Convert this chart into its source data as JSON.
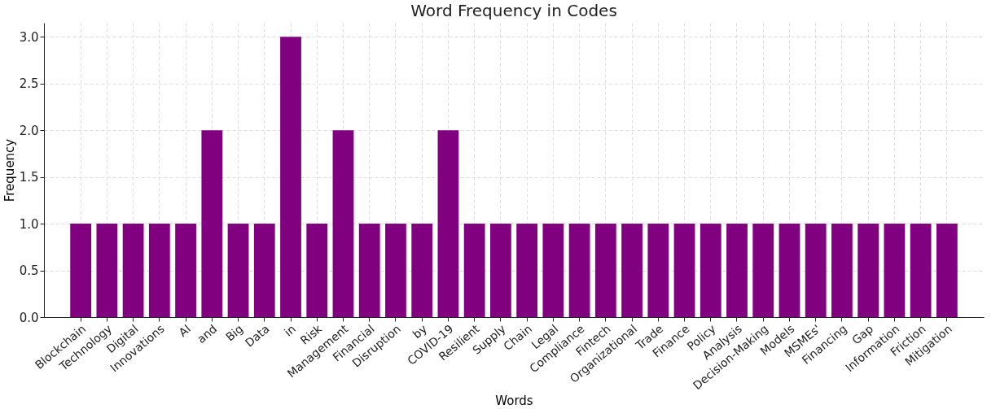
{
  "chart_data": {
    "type": "bar",
    "title": "Word Frequency in Codes",
    "xlabel": "Words",
    "ylabel": "Frequency",
    "categories": [
      "Blockchain",
      "Technology",
      "Digital",
      "Innovations",
      "AI",
      "and",
      "Big",
      "Data",
      "in",
      "Risk",
      "Management",
      "Financial",
      "Disruption",
      "by",
      "COVID-19",
      "Resilient",
      "Supply",
      "Chain",
      "Legal",
      "Compliance",
      "Fintech",
      "Organizational",
      "Trade",
      "Finance",
      "Policy",
      "Analysis",
      "Decision-Making",
      "Models",
      "MSMEs'",
      "Financing",
      "Gap",
      "Information",
      "Friction",
      "Mitigation"
    ],
    "values": [
      1,
      1,
      1,
      1,
      1,
      2,
      1,
      1,
      3,
      1,
      2,
      1,
      1,
      1,
      2,
      1,
      1,
      1,
      1,
      1,
      1,
      1,
      1,
      1,
      1,
      1,
      1,
      1,
      1,
      1,
      1,
      1,
      1,
      1
    ],
    "color": "#800080",
    "ylim": [
      0,
      3.15
    ],
    "yticks": [
      {
        "value": 0,
        "label": "0.0"
      },
      {
        "value": 0.5,
        "label": "0.5"
      },
      {
        "value": 1,
        "label": "1.0"
      },
      {
        "value": 1.5,
        "label": "1.5"
      },
      {
        "value": 2,
        "label": "2.0"
      },
      {
        "value": 2.5,
        "label": "2.5"
      },
      {
        "value": 3,
        "label": "3.0"
      }
    ],
    "grid": true
  }
}
